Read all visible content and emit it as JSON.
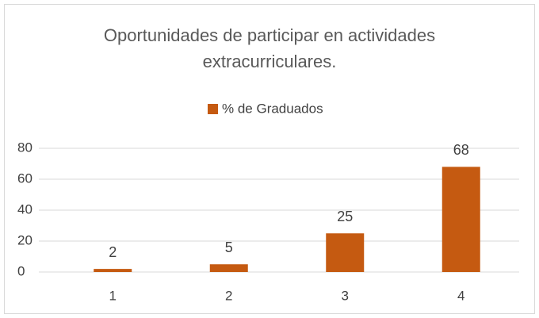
{
  "chart_data": {
    "type": "bar",
    "title": "Oportunidades de participar en actividades extracurriculares.",
    "legend": "% de Graduados",
    "categories": [
      "1",
      "2",
      "3",
      "4"
    ],
    "values": [
      2,
      5,
      25,
      68
    ],
    "color": "#c55a11",
    "ylim": [
      0,
      80
    ],
    "yticks": [
      0,
      20,
      40,
      60,
      80
    ],
    "grid": true,
    "legend_position": "top"
  }
}
